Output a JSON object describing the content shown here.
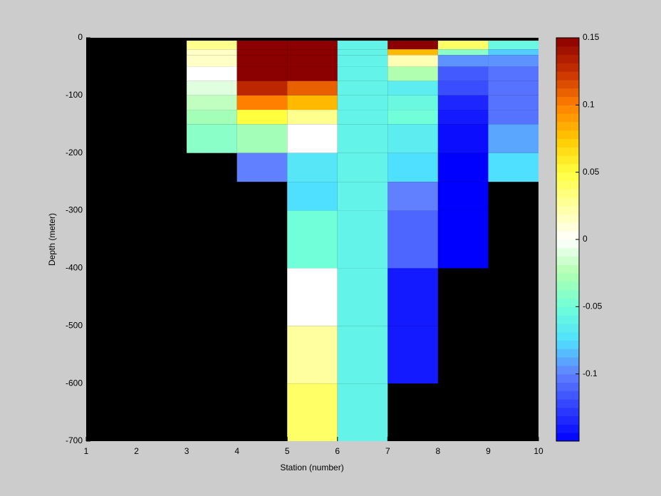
{
  "chart_data": {
    "type": "heatmap",
    "xlabel": "Station (number)",
    "ylabel": "Depth (meter)",
    "xlim": [
      1,
      10
    ],
    "ylim": [
      -700,
      0
    ],
    "xticks": [
      1,
      2,
      3,
      4,
      5,
      6,
      7,
      8,
      9,
      10
    ],
    "yticks": [
      0,
      -100,
      -200,
      -300,
      -400,
      -500,
      -600,
      -700
    ],
    "x_edges": [
      1,
      2,
      3,
      4,
      5,
      6,
      7,
      8,
      9,
      10
    ],
    "y_edges": [
      -5,
      -20,
      -30,
      -50,
      -75,
      -100,
      -125,
      -150,
      -200,
      -250,
      -300,
      -400,
      -500,
      -600,
      -700
    ],
    "values": [
      [
        null,
        null,
        0.03,
        0.15,
        0.15,
        -0.06,
        0.15,
        0.04,
        -0.055
      ],
      [
        null,
        null,
        0.015,
        0.15,
        0.15,
        -0.06,
        0.08,
        -0.04,
        -0.08
      ],
      [
        null,
        null,
        0.015,
        0.15,
        0.15,
        -0.06,
        0.02,
        -0.095,
        -0.095
      ],
      [
        null,
        null,
        0.0,
        0.15,
        0.15,
        -0.06,
        -0.025,
        -0.115,
        -0.105
      ],
      [
        null,
        null,
        -0.01,
        0.13,
        0.11,
        -0.06,
        -0.065,
        -0.12,
        -0.105
      ],
      [
        null,
        null,
        -0.02,
        0.1,
        0.08,
        -0.06,
        -0.055,
        -0.135,
        -0.105
      ],
      [
        null,
        null,
        -0.03,
        0.05,
        0.03,
        -0.06,
        -0.05,
        -0.14,
        -0.105
      ],
      [
        null,
        null,
        -0.04,
        -0.03,
        0.0,
        -0.06,
        -0.065,
        -0.145,
        -0.09
      ],
      [
        null,
        null,
        null,
        -0.1,
        -0.07,
        -0.06,
        -0.075,
        -0.15,
        -0.075
      ],
      [
        null,
        null,
        null,
        null,
        -0.075,
        -0.06,
        -0.1,
        -0.15,
        null
      ],
      [
        null,
        null,
        null,
        null,
        -0.05,
        -0.06,
        -0.11,
        -0.15,
        null
      ],
      [
        null,
        null,
        null,
        null,
        0.0,
        -0.06,
        -0.14,
        null,
        null
      ],
      [
        null,
        null,
        null,
        null,
        0.025,
        -0.06,
        -0.14,
        null,
        null
      ],
      [
        null,
        null,
        null,
        null,
        0.04,
        -0.06,
        null,
        null,
        null
      ]
    ],
    "missing_color": "#000000",
    "clim": [
      -0.15,
      0.15
    ],
    "cticks": [
      0.15,
      0.1,
      0.05,
      0,
      -0.05,
      -0.1
    ],
    "colormap": [
      "#0000ff",
      "#3040ff",
      "#6080ff",
      "#50e0ff",
      "#70ffd8",
      "#b0ffb0",
      "#ffffff",
      "#ffffa0",
      "#ffff40",
      "#ffc800",
      "#ff8000",
      "#c83000",
      "#8b0000"
    ],
    "colorbar_levels": 48
  }
}
